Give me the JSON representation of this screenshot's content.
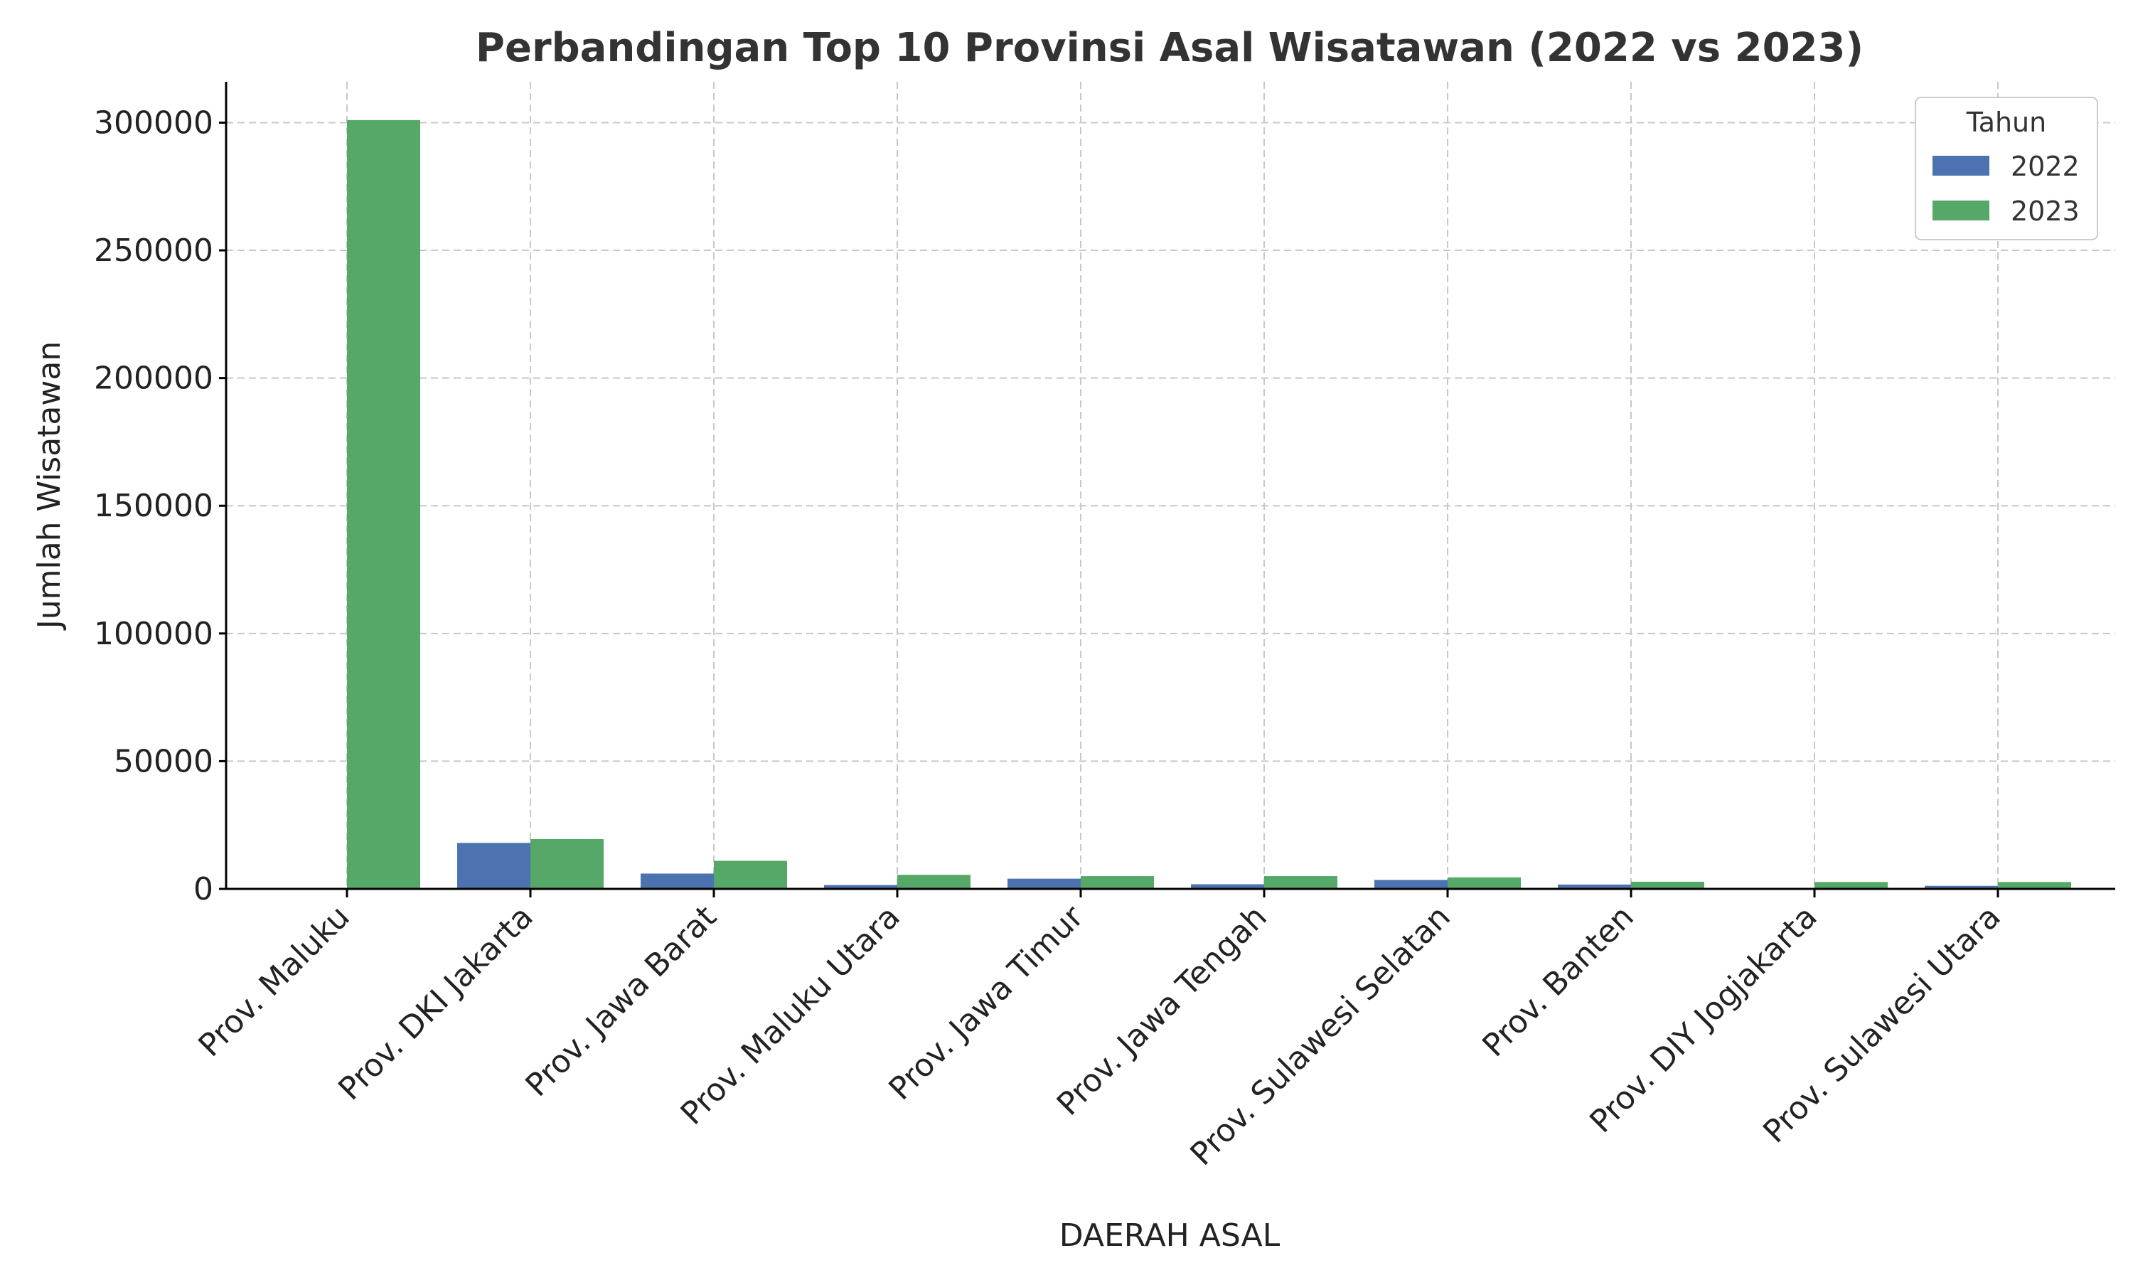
{
  "chart_data": {
    "type": "bar",
    "title": "Perbandingan Top 10 Provinsi Asal Wisatawan (2022 vs 2023)",
    "xlabel": "DAERAH ASAL",
    "ylabel": "Jumlah Wisatawan",
    "ylim": [
      0,
      316000
    ],
    "yticks": [
      0,
      50000,
      100000,
      150000,
      200000,
      250000,
      300000
    ],
    "grid": true,
    "legend": {
      "title": "Tahun",
      "position": "top-right"
    },
    "categories": [
      "Prov. Maluku",
      "Prov. DKI Jakarta",
      "Prov. Jawa Barat",
      "Prov. Maluku Utara",
      "Prov. Jawa Timur",
      "Prov. Jawa Tengah",
      "Prov. Sulawesi Selatan",
      "Prov. Banten",
      "Prov. DIY Jogjakarta",
      "Prov. Sulawesi Utara"
    ],
    "series": [
      {
        "name": "2022",
        "color": "#4c72b0",
        "values": [
          0,
          18000,
          6000,
          1500,
          4000,
          1800,
          3500,
          1700,
          0,
          1200
        ]
      },
      {
        "name": "2023",
        "color": "#55a868",
        "values": [
          301000,
          19500,
          11000,
          5500,
          5000,
          5000,
          4500,
          2800,
          2700,
          2700
        ]
      }
    ]
  }
}
